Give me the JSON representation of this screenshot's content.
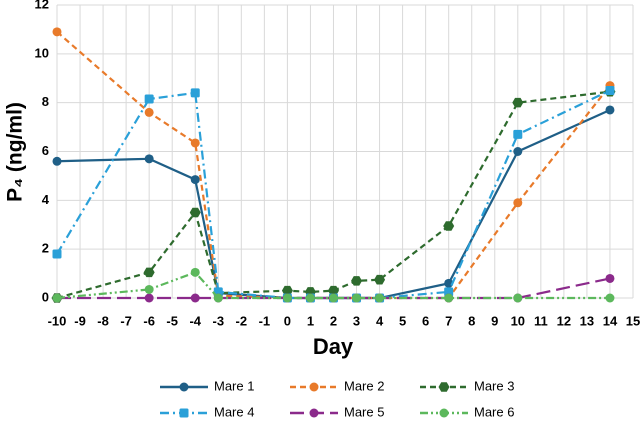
{
  "chart_data": {
    "type": "line",
    "x_label": "Day",
    "y_label": "P₄ (ng/ml)",
    "x": [
      -10,
      -6,
      -4,
      -3,
      0,
      1,
      2,
      3,
      4,
      7,
      10,
      14
    ],
    "series": [
      {
        "name": "Mare 1",
        "color": "#1f5f87",
        "dash": "solid",
        "marker": "circle",
        "values": [
          5.6,
          5.7,
          4.85,
          0.2,
          0,
          0,
          0,
          0,
          0,
          0.6,
          6.0,
          7.7
        ]
      },
      {
        "name": "Mare 2",
        "color": "#e87a2a",
        "dash": "dashed",
        "marker": "circle",
        "values": [
          10.9,
          7.6,
          6.35,
          0.1,
          0,
          0,
          0,
          0,
          0,
          0,
          3.9,
          8.7
        ]
      },
      {
        "name": "Mare 3",
        "color": "#2e6b2e",
        "dash": "dashed",
        "marker": "hexagon",
        "values": [
          0,
          1.05,
          3.5,
          0.2,
          0.3,
          0.25,
          0.3,
          0.7,
          0.75,
          2.95,
          8.0,
          8.45
        ]
      },
      {
        "name": "Mare 4",
        "color": "#2aa0d8",
        "dash": "dashdot",
        "marker": "square",
        "values": [
          1.8,
          8.15,
          8.4,
          0.25,
          0,
          0,
          0,
          0,
          0,
          0.25,
          6.7,
          8.5
        ]
      },
      {
        "name": "Mare 5",
        "color": "#8b2a8b",
        "dash": "longdash",
        "marker": "circle",
        "values": [
          0,
          0,
          0,
          0,
          0,
          0,
          0,
          0,
          0,
          0,
          0,
          0.8
        ]
      },
      {
        "name": "Mare 6",
        "color": "#5cb85c",
        "dash": "dashdotdot",
        "marker": "circle",
        "values": [
          0,
          0.35,
          1.05,
          0,
          0,
          0,
          0,
          0,
          0,
          0,
          0,
          0
        ]
      }
    ],
    "xlim": [
      -10,
      15
    ],
    "xticks": [
      -10,
      -9,
      -8,
      -7,
      -6,
      -5,
      -4,
      -3,
      -2,
      -1,
      0,
      1,
      2,
      3,
      4,
      5,
      6,
      7,
      8,
      9,
      10,
      11,
      12,
      13,
      14,
      15
    ],
    "ylim": [
      0,
      12
    ],
    "yticks": [
      0,
      2,
      4,
      6,
      8,
      10,
      12
    ],
    "grid": true
  }
}
